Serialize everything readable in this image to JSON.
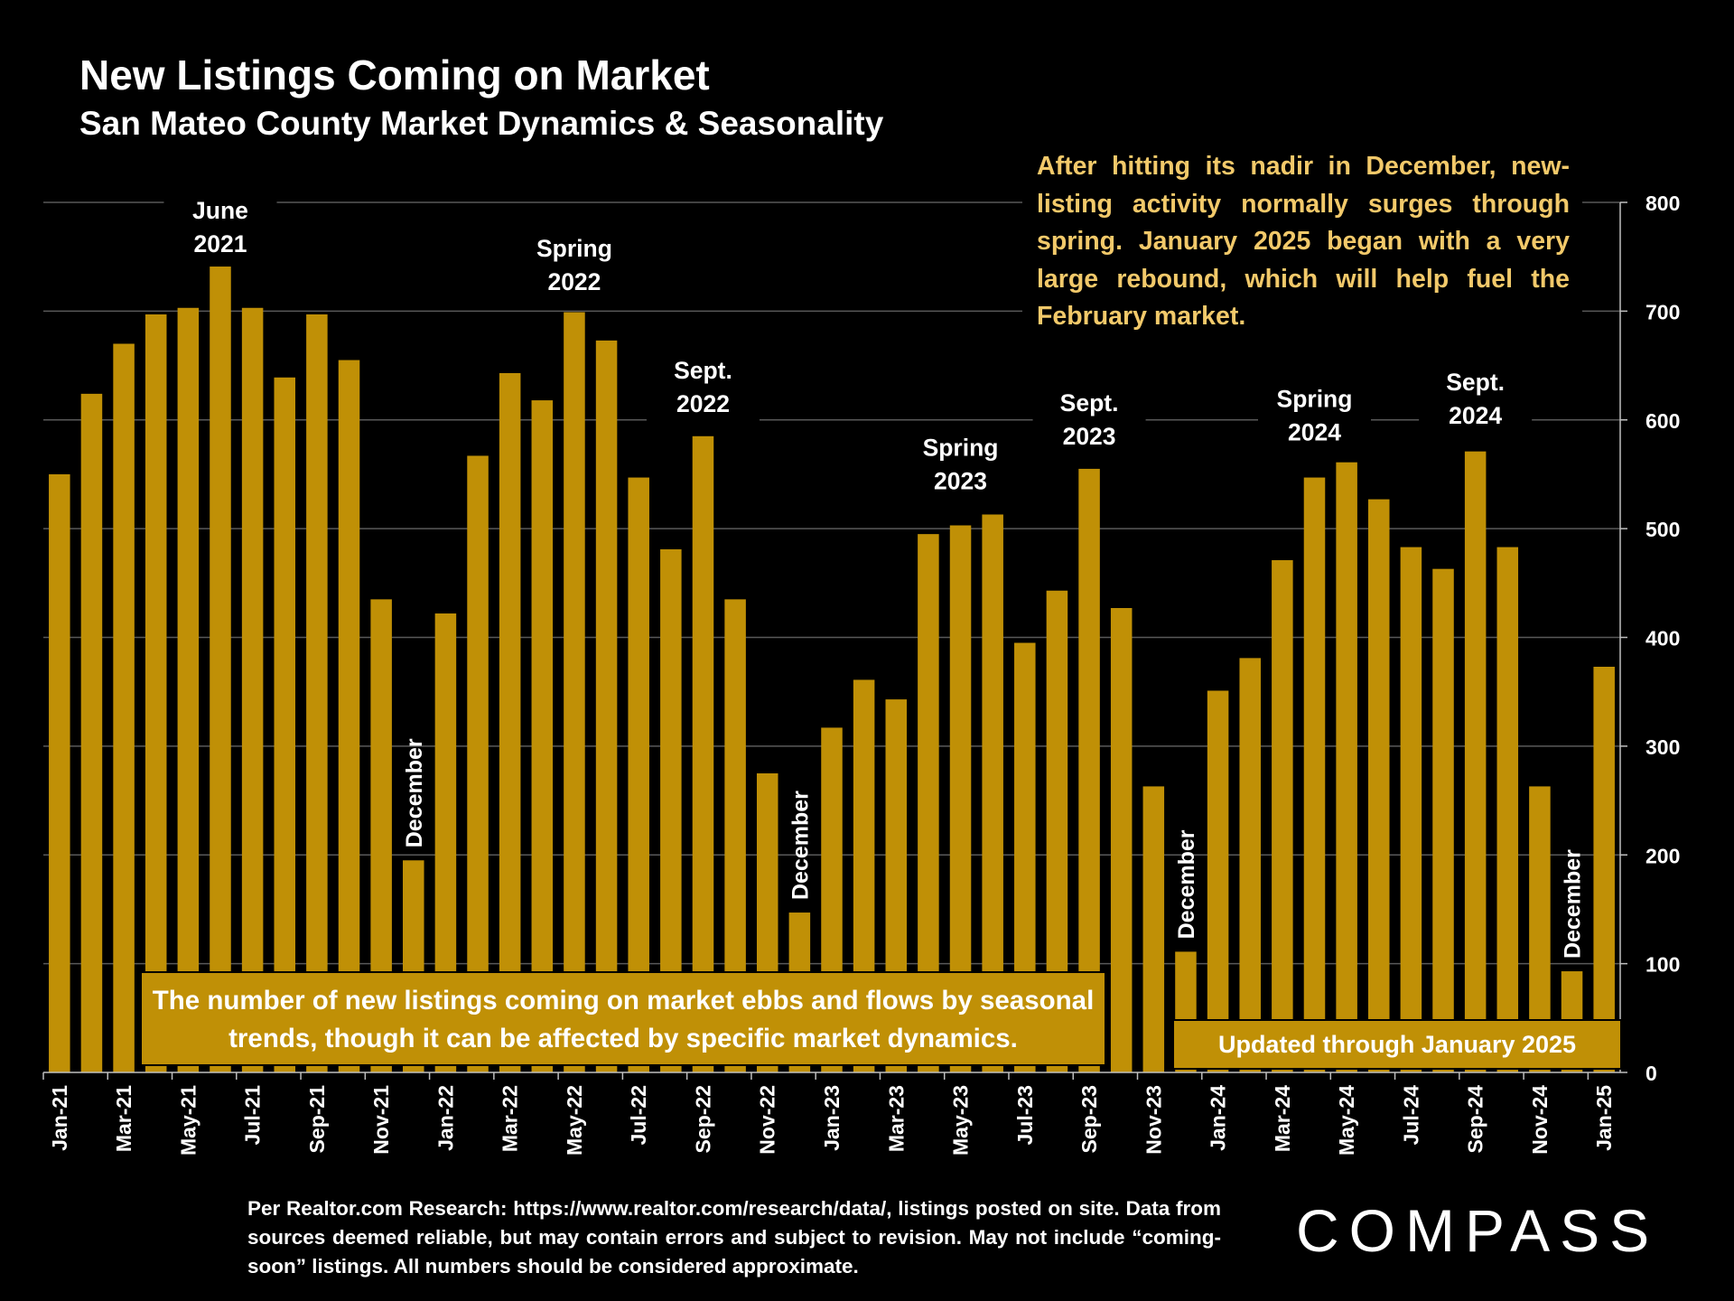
{
  "title": "New Listings Coming on Market",
  "subtitle": "San Mateo County Market Dynamics & Seasonality",
  "commentary": "After hitting its nadir in December, new-listing activity normally surges through spring. January 2025 began with a very large rebound, which will help fuel the February market.",
  "note_box": "The number of new listings coming on market ebbs and flows by seasonal trends, though it can be affected by specific market dynamics.",
  "updated_box": "Updated through January 2025",
  "source": "Per Realtor.com Research:   https://www.realtor.com/research/data/, listings posted on site. Data from sources deemed reliable, but may contain errors and subject to revision. May not include “coming-soon” listings. All numbers should be considered approximate.",
  "logo": "COMPASS",
  "colors": {
    "background": "#000000",
    "bar": "#c09006",
    "commentary_text": "#f2c96a",
    "gridline": "#595959"
  },
  "chart_data": {
    "type": "bar",
    "title": "New Listings Coming on Market",
    "subtitle": "San Mateo County Market Dynamics & Seasonality",
    "xlabel": "",
    "ylabel": "",
    "ylim": [
      0,
      800
    ],
    "y_axis_position": "right",
    "yticks": [
      "0",
      "100",
      "200",
      "300",
      "400",
      "500",
      "600",
      "700",
      "800"
    ],
    "grid": true,
    "categories": [
      "Jan-21",
      "Feb-21",
      "Mar-21",
      "Apr-21",
      "May-21",
      "Jun-21",
      "Jul-21",
      "Aug-21",
      "Sep-21",
      "Oct-21",
      "Nov-21",
      "Dec-21",
      "Jan-22",
      "Feb-22",
      "Mar-22",
      "Apr-22",
      "May-22",
      "Jun-22",
      "Jul-22",
      "Aug-22",
      "Sep-22",
      "Oct-22",
      "Nov-22",
      "Dec-22",
      "Jan-23",
      "Feb-23",
      "Mar-23",
      "Apr-23",
      "May-23",
      "Jun-23",
      "Jul-23",
      "Aug-23",
      "Sep-23",
      "Oct-23",
      "Nov-23",
      "Dec-23",
      "Jan-24",
      "Feb-24",
      "Mar-24",
      "Apr-24",
      "May-24",
      "Jun-24",
      "Jul-24",
      "Aug-24",
      "Sep-24",
      "Oct-24",
      "Nov-24",
      "Dec-24",
      "Jan-25"
    ],
    "x_tick_labels": [
      "Jan-21",
      "",
      "Mar-21",
      "",
      "May-21",
      "",
      "Jul-21",
      "",
      "Sep-21",
      "",
      "Nov-21",
      "",
      "Jan-22",
      "",
      "Mar-22",
      "",
      "May-22",
      "",
      "Jul-22",
      "",
      "Sep-22",
      "",
      "Nov-22",
      "",
      "Jan-23",
      "",
      "Mar-23",
      "",
      "May-23",
      "",
      "Jul-23",
      "",
      "Sep-23",
      "",
      "Nov-23",
      "",
      "Jan-24",
      "",
      "Mar-24",
      "",
      "May-24",
      "",
      "Jul-24",
      "",
      "Sep-24",
      "",
      "Nov-24",
      "",
      "Jan-25"
    ],
    "values": [
      550,
      624,
      670,
      697,
      703,
      741,
      703,
      639,
      697,
      655,
      435,
      195,
      422,
      567,
      643,
      618,
      699,
      673,
      547,
      481,
      585,
      435,
      275,
      147,
      317,
      361,
      343,
      495,
      503,
      513,
      395,
      443,
      555,
      427,
      263,
      111,
      351,
      381,
      471,
      547,
      561,
      527,
      483,
      463,
      571,
      483,
      263,
      93,
      373
    ],
    "annotations": [
      {
        "lines": [
          "June",
          "2021"
        ],
        "category": "Jun-21",
        "orientation": "horizontal",
        "y": 785
      },
      {
        "lines": [
          "Spring",
          "2022"
        ],
        "category": "May-22",
        "orientation": "horizontal",
        "y": 750
      },
      {
        "lines": [
          "Sept.",
          "2022"
        ],
        "category": "Sep-22",
        "orientation": "horizontal",
        "y": 638
      },
      {
        "lines": [
          "Spring",
          "2023"
        ],
        "category": "May-23",
        "orientation": "horizontal",
        "y": 567
      },
      {
        "lines": [
          "Sept.",
          "2023"
        ],
        "category": "Sep-23",
        "orientation": "horizontal",
        "y": 608
      },
      {
        "lines": [
          "Spring",
          "2024"
        ],
        "category": "Apr-24",
        "orientation": "horizontal",
        "y": 612
      },
      {
        "lines": [
          "Sept.",
          "2024"
        ],
        "category": "Sep-24",
        "orientation": "horizontal",
        "y": 627
      },
      {
        "lines": [
          "December"
        ],
        "category": "Dec-21",
        "orientation": "vertical"
      },
      {
        "lines": [
          "December"
        ],
        "category": "Dec-22",
        "orientation": "vertical"
      },
      {
        "lines": [
          "December"
        ],
        "category": "Dec-23",
        "orientation": "vertical"
      },
      {
        "lines": [
          "December"
        ],
        "category": "Dec-24",
        "orientation": "vertical"
      }
    ]
  }
}
